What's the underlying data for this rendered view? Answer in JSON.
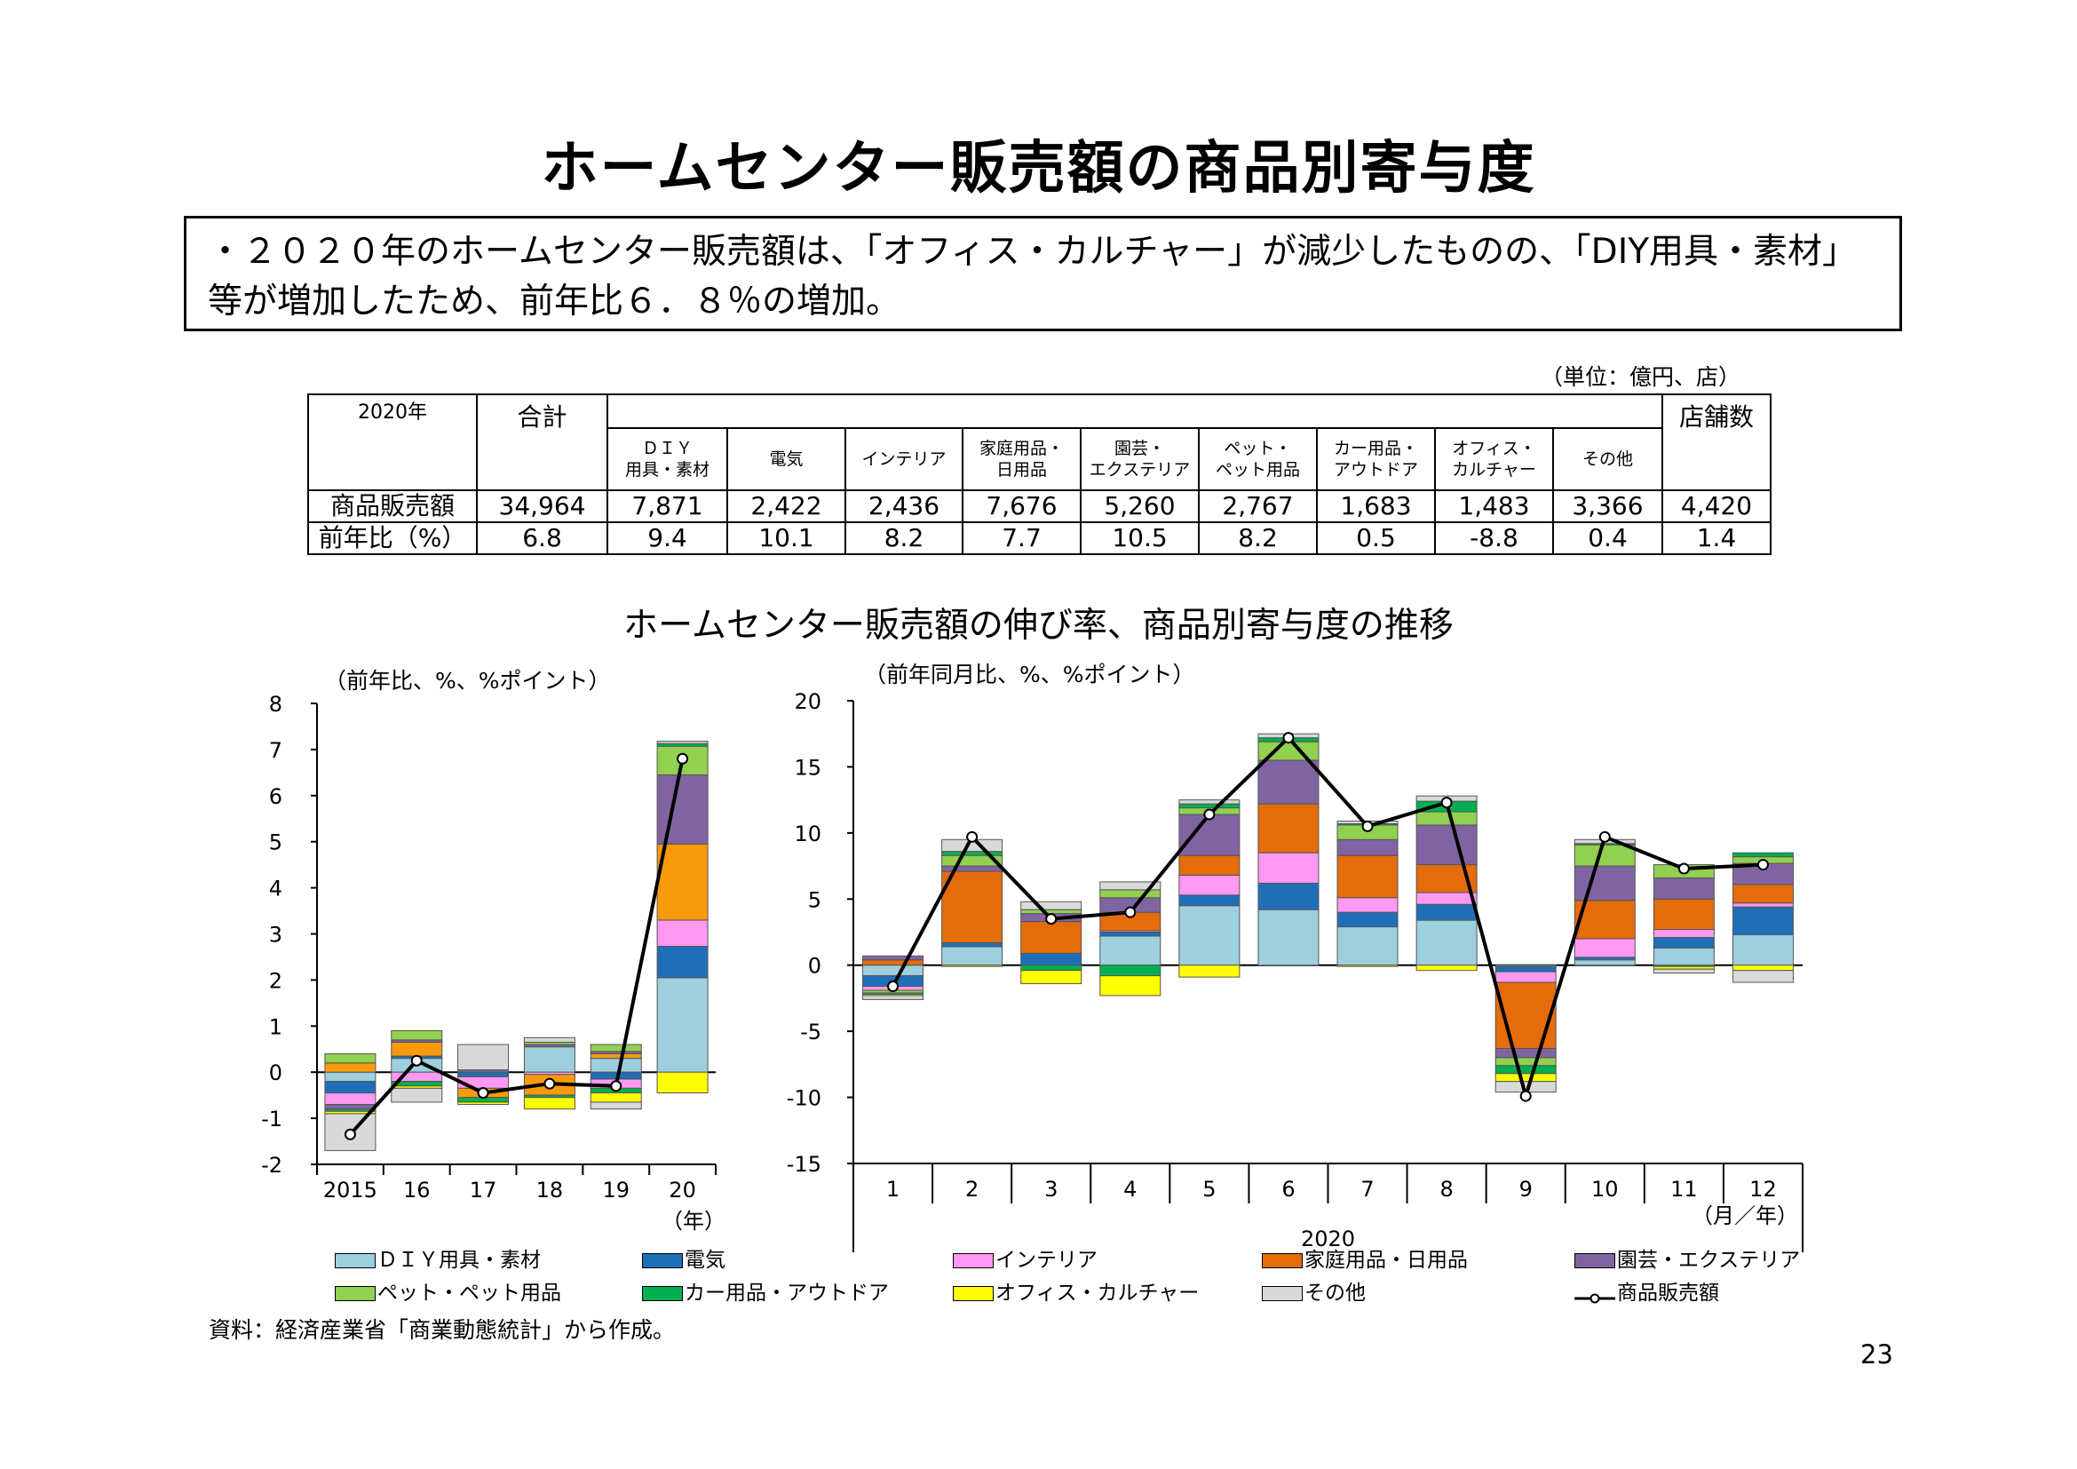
{
  "title": "ホームセンター販売額の商品別寄与度",
  "summary": "・２０２０年のホームセンター販売額は、「オフィス・カルチャー」が減少したものの、「DIY用具・素材」等が増加したため、前年比６．８％の増加。",
  "table": {
    "unit_note": "（単位：億円、店）",
    "year_label": "2020年",
    "total_label": "合計",
    "stores_label": "店舗数",
    "headers": [
      [
        "ＤＩＹ",
        "用具・素材"
      ],
      [
        "電気",
        ""
      ],
      [
        "インテリア",
        ""
      ],
      [
        "家庭用品・",
        "日用品"
      ],
      [
        "園芸・",
        "エクステリア"
      ],
      [
        "ペット・",
        "ペット用品"
      ],
      [
        "カー用品・",
        "アウトドア"
      ],
      [
        "オフィス・",
        "カルチャー"
      ],
      [
        "その他",
        ""
      ]
    ],
    "rows": [
      {
        "label": "商品販売額",
        "total": "34,964",
        "values": [
          "7,871",
          "2,422",
          "2,436",
          "7,676",
          "5,260",
          "2,767",
          "1,683",
          "1,483",
          "3,366"
        ],
        "stores": "4,420"
      },
      {
        "label": "前年比（%）",
        "total": "6.8",
        "values": [
          "9.4",
          "10.1",
          "8.2",
          "7.7",
          "10.5",
          "8.2",
          "0.5",
          "-8.8",
          "0.4"
        ],
        "stores": "1.4"
      }
    ]
  },
  "chart_title": "ホームセンター販売額の伸び率、商品別寄与度の推移",
  "source_note": "資料：経済産業省「商業動態統計」から作成。",
  "page_number": "23",
  "colors": {
    "diy": "#9DCFDE",
    "denki": "#1F6FB8",
    "interior": "#FF99F2",
    "katei": "#E46C0A",
    "engei": "#8064A2",
    "pet": "#92D050",
    "car": "#00B050",
    "office": "#FFFF00",
    "other": "#D9D9D9",
    "yearly_katei": "#F79A0B"
  },
  "legend": [
    {
      "key": "diy",
      "label": "ＤＩＹ用具・素材"
    },
    {
      "key": "denki",
      "label": "電気"
    },
    {
      "key": "interior",
      "label": "インテリア"
    },
    {
      "key": "katei",
      "label": "家庭用品・日用品"
    },
    {
      "key": "engei",
      "label": "園芸・エクステリア"
    },
    {
      "key": "pet",
      "label": "ペット・ペット用品"
    },
    {
      "key": "car",
      "label": "カー用品・アウトドア"
    },
    {
      "key": "office",
      "label": "オフィス・カルチャー"
    },
    {
      "key": "other",
      "label": "その他"
    },
    {
      "key": "line",
      "label": "商品販売額"
    }
  ],
  "chart_data": [
    {
      "type": "bar",
      "stacked": true,
      "unit_label": "（前年比、%、%ポイント）",
      "categories": [
        "2015",
        "16",
        "17",
        "18",
        "19",
        "20"
      ],
      "x_unit_label": "（年）",
      "ylim": [
        -2,
        8
      ],
      "yticks": [
        -2,
        -1,
        0,
        1,
        2,
        3,
        4,
        5,
        6,
        7,
        8
      ],
      "series": [
        {
          "key": "diy",
          "name": "ＤＩＹ用具・素材",
          "values": [
            -0.2,
            0.3,
            0.0,
            0.55,
            0.3,
            2.05
          ]
        },
        {
          "key": "denki",
          "name": "電気",
          "values": [
            -0.25,
            0.05,
            -0.1,
            0.0,
            -0.15,
            0.68
          ]
        },
        {
          "key": "interior",
          "name": "インテリア",
          "values": [
            -0.25,
            -0.2,
            -0.25,
            -0.05,
            -0.2,
            0.57
          ]
        },
        {
          "key": "katei",
          "name": "家庭用品・日用品",
          "values": [
            0.2,
            0.3,
            -0.2,
            -0.45,
            0.1,
            1.65
          ]
        },
        {
          "key": "engei",
          "name": "園芸・エクステリア",
          "values": [
            -0.1,
            0.05,
            0.05,
            0.05,
            0.05,
            1.5
          ]
        },
        {
          "key": "pet",
          "name": "ペット・ペット用品",
          "values": [
            0.2,
            0.2,
            0.0,
            0.05,
            0.15,
            0.62
          ]
        },
        {
          "key": "car",
          "name": "カー用品・アウトドア",
          "values": [
            -0.05,
            -0.1,
            -0.1,
            -0.05,
            -0.1,
            0.06
          ]
        },
        {
          "key": "office",
          "name": "オフィス・カルチャー",
          "values": [
            -0.05,
            -0.05,
            -0.05,
            -0.25,
            -0.2,
            -0.45
          ]
        },
        {
          "key": "other",
          "name": "その他",
          "values": [
            -0.8,
            -0.3,
            0.55,
            0.1,
            -0.15,
            0.05
          ]
        }
      ],
      "line": {
        "key": "line",
        "name": "商品販売額",
        "values": [
          -1.35,
          0.25,
          -0.45,
          -0.25,
          -0.3,
          6.8
        ]
      }
    },
    {
      "type": "bar",
      "stacked": true,
      "unit_label": "（前年同月比、%、%ポイント）",
      "categories": [
        "1",
        "2",
        "3",
        "4",
        "5",
        "6",
        "7",
        "8",
        "9",
        "10",
        "11",
        "12"
      ],
      "x_group_label": "2020",
      "x_unit_label": "（月／年）",
      "ylim": [
        -15,
        20
      ],
      "yticks": [
        -15,
        -10,
        -5,
        0,
        5,
        10,
        15,
        20
      ],
      "series": [
        {
          "key": "diy",
          "name": "ＤＩＹ用具・素材",
          "values": [
            -0.8,
            1.4,
            0.0,
            2.2,
            4.5,
            4.2,
            2.9,
            3.4,
            -0.1,
            0.4,
            1.3,
            2.3
          ]
        },
        {
          "key": "denki",
          "name": "電気",
          "values": [
            -0.8,
            0.3,
            0.9,
            0.3,
            0.8,
            2.0,
            1.1,
            1.2,
            -0.4,
            0.2,
            0.8,
            2.1
          ]
        },
        {
          "key": "interior",
          "name": "インテリア",
          "values": [
            -0.3,
            0.0,
            0.0,
            0.1,
            1.5,
            2.3,
            1.1,
            0.9,
            -0.8,
            1.4,
            0.6,
            0.3
          ]
        },
        {
          "key": "katei",
          "name": "家庭用品・日用品",
          "values": [
            0.4,
            5.4,
            2.4,
            1.4,
            1.5,
            3.7,
            3.2,
            2.1,
            -5.0,
            2.9,
            2.3,
            1.4
          ]
        },
        {
          "key": "engei",
          "name": "園芸・エクステリア",
          "values": [
            0.3,
            0.4,
            0.6,
            1.1,
            3.1,
            3.3,
            1.2,
            3.0,
            -0.7,
            2.6,
            1.6,
            1.6
          ]
        },
        {
          "key": "pet",
          "name": "ペット・ペット用品",
          "values": [
            -0.2,
            0.8,
            0.3,
            0.6,
            0.5,
            1.4,
            1.1,
            1.0,
            -0.6,
            1.6,
            1.0,
            0.5
          ]
        },
        {
          "key": "car",
          "name": "カー用品・アウトドア",
          "values": [
            -0.1,
            0.3,
            -0.4,
            -0.8,
            0.3,
            0.3,
            0.1,
            0.8,
            -0.6,
            0.1,
            -0.1,
            0.3
          ]
        },
        {
          "key": "office",
          "name": "オフィス・カルチャー",
          "values": [
            -0.1,
            -0.1,
            -1.0,
            -1.5,
            -0.9,
            0.0,
            -0.1,
            -0.4,
            -0.6,
            0.0,
            -0.2,
            -0.4
          ]
        },
        {
          "key": "other",
          "name": "その他",
          "values": [
            -0.3,
            0.9,
            0.6,
            0.6,
            0.3,
            0.3,
            0.2,
            0.4,
            -0.8,
            0.3,
            -0.3,
            -0.9
          ]
        }
      ],
      "line": {
        "key": "line",
        "name": "商品販売額",
        "values": [
          -1.6,
          9.7,
          3.5,
          4.0,
          11.4,
          17.2,
          10.5,
          12.3,
          -9.9,
          9.7,
          7.3,
          7.6
        ]
      }
    }
  ]
}
